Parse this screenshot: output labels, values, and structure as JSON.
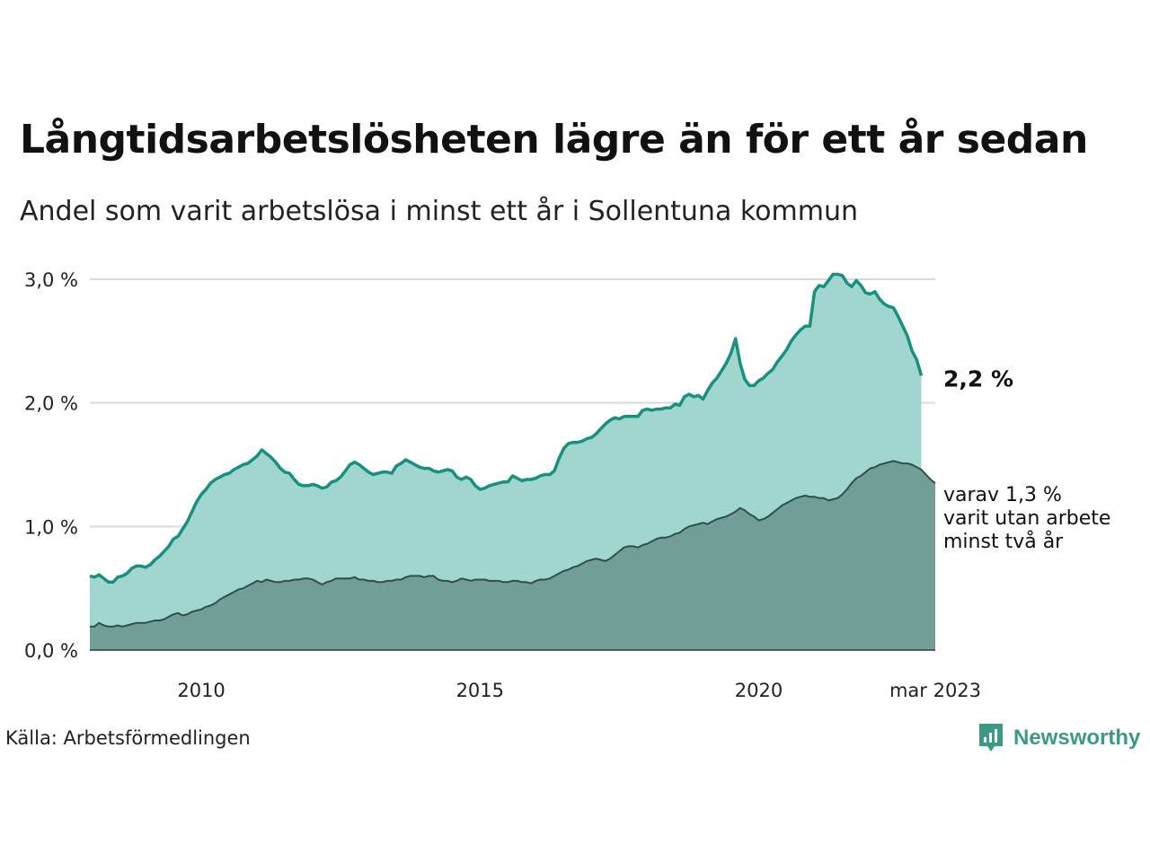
{
  "title": "Långtidsarbetslösheten lägre än för ett år sedan",
  "subtitle": "Andel som varit arbetslösa i minst ett år i Sollentuna kommun",
  "source": "Källa: Arbetsförmedlingen",
  "brand": {
    "name": "Newsworthy",
    "icon": "newsworthy-logo-icon"
  },
  "colors": {
    "total_line": "#17917f",
    "total_area": "#a1d6cf",
    "long_line": "#2f4f4a",
    "long_area": "#719f97",
    "grid": "#d9d9d9"
  },
  "chart_data": {
    "type": "area",
    "x_start": 2008.0,
    "x_step": 0.0833333,
    "xlim": [
      2008.0,
      2023.167
    ],
    "ylim": [
      0,
      3.0
    ],
    "y_ticks": [
      0,
      1,
      2,
      3
    ],
    "y_tick_labels": [
      "0,0 %",
      "1,0 %",
      "2,0 %",
      "3,0 %"
    ],
    "x_ticks": [
      2010,
      2015,
      2020,
      2023.167
    ],
    "x_tick_labels": [
      "2010",
      "2015",
      "2020",
      "mar 2023"
    ],
    "grid": true,
    "end_labels": {
      "total": "2,2 %",
      "long": [
        "varav 1,3 %",
        "varit utan arbete",
        "minst två år"
      ]
    },
    "series": [
      {
        "key": "total",
        "values": [
          0.6,
          0.59,
          0.61,
          0.58,
          0.55,
          0.55,
          0.59,
          0.6,
          0.62,
          0.66,
          0.68,
          0.68,
          0.67,
          0.69,
          0.73,
          0.76,
          0.8,
          0.84,
          0.9,
          0.92,
          0.98,
          1.04,
          1.12,
          1.2,
          1.26,
          1.3,
          1.35,
          1.38,
          1.4,
          1.42,
          1.43,
          1.46,
          1.48,
          1.5,
          1.51,
          1.54,
          1.57,
          1.62,
          1.59,
          1.56,
          1.52,
          1.47,
          1.44,
          1.43,
          1.38,
          1.34,
          1.33,
          1.33,
          1.34,
          1.33,
          1.31,
          1.32,
          1.36,
          1.37,
          1.4,
          1.45,
          1.5,
          1.52,
          1.5,
          1.47,
          1.44,
          1.42,
          1.43,
          1.44,
          1.44,
          1.43,
          1.49,
          1.51,
          1.54,
          1.52,
          1.5,
          1.48,
          1.47,
          1.47,
          1.45,
          1.44,
          1.45,
          1.46,
          1.45,
          1.4,
          1.38,
          1.4,
          1.38,
          1.33,
          1.3,
          1.31,
          1.33,
          1.34,
          1.35,
          1.36,
          1.36,
          1.41,
          1.39,
          1.37,
          1.38,
          1.38,
          1.39,
          1.41,
          1.42,
          1.42,
          1.45,
          1.55,
          1.63,
          1.67,
          1.68,
          1.68,
          1.69,
          1.71,
          1.72,
          1.75,
          1.79,
          1.83,
          1.86,
          1.88,
          1.87,
          1.89,
          1.89,
          1.89,
          1.89,
          1.94,
          1.95,
          1.94,
          1.95,
          1.95,
          1.96,
          1.96,
          1.99,
          1.98,
          2.05,
          2.07,
          2.05,
          2.06,
          2.03,
          2.1,
          2.16,
          2.2,
          2.26,
          2.32,
          2.4,
          2.52,
          2.32,
          2.19,
          2.14,
          2.14,
          2.18,
          2.2,
          2.24,
          2.27,
          2.33,
          2.38,
          2.43,
          2.5,
          2.55,
          2.59,
          2.62,
          2.62,
          2.9,
          2.95,
          2.94,
          2.99,
          3.04,
          3.04,
          3.03,
          2.97,
          2.94,
          2.99,
          2.95,
          2.89,
          2.88,
          2.9,
          2.84,
          2.8,
          2.78,
          2.77,
          2.7,
          2.62,
          2.54,
          2.42,
          2.35,
          2.22
        ]
      },
      {
        "key": "long",
        "values": [
          0.19,
          0.19,
          0.22,
          0.2,
          0.19,
          0.19,
          0.2,
          0.19,
          0.2,
          0.21,
          0.22,
          0.22,
          0.22,
          0.23,
          0.24,
          0.24,
          0.25,
          0.27,
          0.29,
          0.3,
          0.28,
          0.29,
          0.31,
          0.32,
          0.33,
          0.35,
          0.36,
          0.38,
          0.41,
          0.43,
          0.45,
          0.47,
          0.49,
          0.5,
          0.52,
          0.54,
          0.56,
          0.55,
          0.57,
          0.56,
          0.55,
          0.55,
          0.56,
          0.56,
          0.57,
          0.57,
          0.58,
          0.58,
          0.57,
          0.55,
          0.53,
          0.55,
          0.56,
          0.58,
          0.58,
          0.58,
          0.58,
          0.59,
          0.57,
          0.57,
          0.56,
          0.56,
          0.55,
          0.55,
          0.56,
          0.56,
          0.57,
          0.57,
          0.59,
          0.6,
          0.6,
          0.6,
          0.59,
          0.6,
          0.6,
          0.57,
          0.56,
          0.56,
          0.55,
          0.56,
          0.58,
          0.57,
          0.56,
          0.57,
          0.57,
          0.57,
          0.56,
          0.56,
          0.56,
          0.55,
          0.55,
          0.56,
          0.56,
          0.55,
          0.55,
          0.54,
          0.56,
          0.57,
          0.57,
          0.58,
          0.6,
          0.62,
          0.64,
          0.65,
          0.67,
          0.68,
          0.7,
          0.72,
          0.73,
          0.74,
          0.73,
          0.72,
          0.74,
          0.77,
          0.8,
          0.83,
          0.84,
          0.84,
          0.83,
          0.85,
          0.86,
          0.88,
          0.9,
          0.91,
          0.91,
          0.92,
          0.94,
          0.95,
          0.98,
          1.0,
          1.01,
          1.02,
          1.03,
          1.02,
          1.04,
          1.06,
          1.07,
          1.08,
          1.1,
          1.12,
          1.15,
          1.13,
          1.1,
          1.08,
          1.05,
          1.06,
          1.08,
          1.11,
          1.14,
          1.17,
          1.19,
          1.21,
          1.23,
          1.24,
          1.25,
          1.24,
          1.24,
          1.23,
          1.23,
          1.21,
          1.22,
          1.23,
          1.26,
          1.3,
          1.35,
          1.39,
          1.41,
          1.44,
          1.47,
          1.48,
          1.5,
          1.51,
          1.52,
          1.53,
          1.52,
          1.51,
          1.51,
          1.5,
          1.48,
          1.46,
          1.42,
          1.38,
          1.35
        ]
      }
    ]
  }
}
